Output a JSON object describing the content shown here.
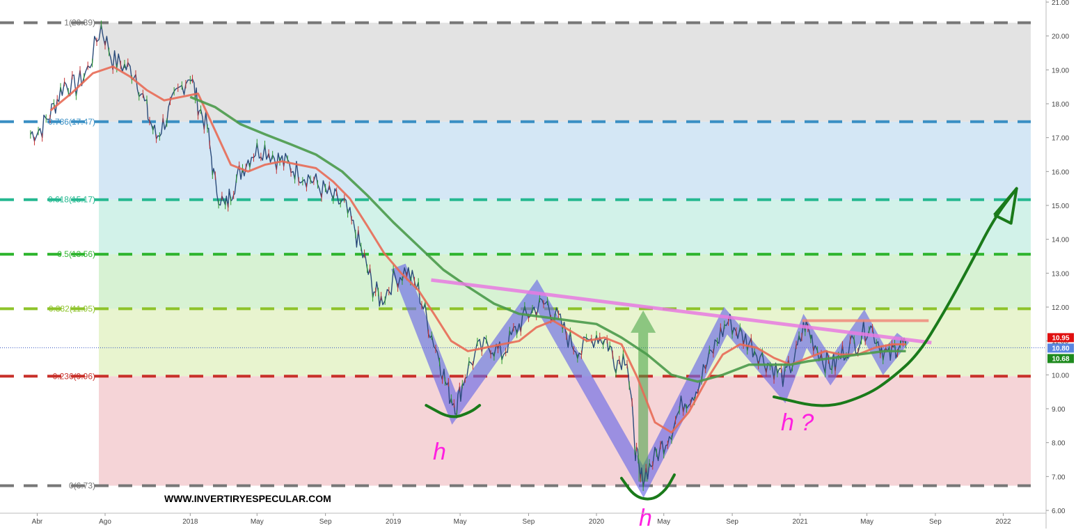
{
  "chart_data": {
    "type": "line",
    "title": "",
    "xlabel": "",
    "ylabel": "",
    "ylim": [
      6.0,
      21.0
    ],
    "grid": false,
    "y_ticks": [
      "6.00",
      "7.00",
      "8.00",
      "9.00",
      "10.00",
      "11.00",
      "12.00",
      "13.00",
      "14.00",
      "15.00",
      "16.00",
      "17.00",
      "18.00",
      "19.00",
      "20.00",
      "21.00"
    ],
    "x_ticks": [
      {
        "label": "Abr",
        "date": "2017-04-01"
      },
      {
        "label": "Ago",
        "date": "2017-08-01"
      },
      {
        "label": "2018",
        "date": "2018-01-01"
      },
      {
        "label": "May",
        "date": "2018-05-01"
      },
      {
        "label": "Sep",
        "date": "2018-09-01"
      },
      {
        "label": "2019",
        "date": "2019-01-01"
      },
      {
        "label": "May",
        "date": "2019-05-01"
      },
      {
        "label": "Sep",
        "date": "2019-09-01"
      },
      {
        "label": "2020",
        "date": "2020-01-01"
      },
      {
        "label": "May",
        "date": "2020-05-01"
      },
      {
        "label": "Sep",
        "date": "2020-09-01"
      },
      {
        "label": "2021",
        "date": "2021-01-01"
      },
      {
        "label": "May",
        "date": "2021-05-01"
      },
      {
        "label": "Sep",
        "date": "2021-09-01"
      },
      {
        "label": "2022",
        "date": "2022-01-01"
      }
    ],
    "fib_levels": [
      {
        "label": "1(20.39)",
        "value": 20.39,
        "color": "#777777"
      },
      {
        "label": "0.786(17.47)",
        "value": 17.47,
        "color": "#3a8fc4"
      },
      {
        "label": "0.618(15.17)",
        "value": 15.17,
        "color": "#25b890"
      },
      {
        "label": "0.5(13.56)",
        "value": 13.56,
        "color": "#2fb52f"
      },
      {
        "label": "0.382(11.95)",
        "value": 11.95,
        "color": "#8ec32a"
      },
      {
        "label": "0.236(9.96)",
        "value": 9.96,
        "color": "#c8302a"
      },
      {
        "label": "0(6.73)",
        "value": 6.73,
        "color": "#777777"
      }
    ],
    "zones": [
      {
        "from": 17.47,
        "to": 20.39,
        "color": "#e3e3e3"
      },
      {
        "from": 15.17,
        "to": 17.47,
        "color": "#d4e7f5"
      },
      {
        "from": 13.56,
        "to": 15.17,
        "color": "#d2f2e9"
      },
      {
        "from": 11.95,
        "to": 13.56,
        "color": "#d7f2d3"
      },
      {
        "from": 9.96,
        "to": 11.95,
        "color": "#e8f4cf"
      },
      {
        "from": 6.73,
        "to": 9.96,
        "color": "#f5d4d7"
      }
    ],
    "price_badges": [
      {
        "value": 10.95,
        "label": "10.95",
        "color": "#e01010"
      },
      {
        "value": 10.8,
        "label": "10.80",
        "color": "#5a86e0"
      },
      {
        "value": 10.68,
        "label": "10.68",
        "color": "#1e8a1e"
      }
    ],
    "current_price": 10.8,
    "series": [
      {
        "role": "price",
        "color": "#2a4a7a",
        "points": [
          [
            "2017-03-20",
            17.1
          ],
          [
            "2017-04-10",
            17.3
          ],
          [
            "2017-05-01",
            17.9
          ],
          [
            "2017-05-20",
            18.6
          ],
          [
            "2017-06-10",
            18.5
          ],
          [
            "2017-07-01",
            19.0
          ],
          [
            "2017-07-25",
            20.3
          ],
          [
            "2017-08-15",
            19.3
          ],
          [
            "2017-09-05",
            19.1
          ],
          [
            "2017-09-25",
            18.9
          ],
          [
            "2017-10-15",
            17.8
          ],
          [
            "2017-11-01",
            17.0
          ],
          [
            "2017-11-20",
            17.6
          ],
          [
            "2017-12-10",
            18.3
          ],
          [
            "2018-01-01",
            18.9
          ],
          [
            "2018-01-15",
            18.0
          ],
          [
            "2018-02-01",
            17.3
          ],
          [
            "2018-02-15",
            15.6
          ],
          [
            "2018-03-05",
            14.9
          ],
          [
            "2018-03-20",
            15.6
          ],
          [
            "2018-04-05",
            16.1
          ],
          [
            "2018-04-25",
            16.6
          ],
          [
            "2018-05-15",
            16.7
          ],
          [
            "2018-06-05",
            16.4
          ],
          [
            "2018-06-25",
            16.2
          ],
          [
            "2018-07-15",
            16.0
          ],
          [
            "2018-08-05",
            15.8
          ],
          [
            "2018-08-25",
            15.5
          ],
          [
            "2018-09-15",
            15.2
          ],
          [
            "2018-10-05",
            15.0
          ],
          [
            "2018-10-25",
            14.2
          ],
          [
            "2018-11-10",
            13.4
          ],
          [
            "2018-11-25",
            12.6
          ],
          [
            "2018-12-10",
            12.2
          ],
          [
            "2019-01-01",
            12.8
          ],
          [
            "2019-01-25",
            13.1
          ],
          [
            "2019-02-15",
            12.5
          ],
          [
            "2019-03-05",
            11.5
          ],
          [
            "2019-03-25",
            10.5
          ],
          [
            "2019-04-10",
            9.5
          ],
          [
            "2019-04-25",
            9.1
          ],
          [
            "2019-05-10",
            10.0
          ],
          [
            "2019-06-01",
            10.7
          ],
          [
            "2019-06-25",
            10.9
          ],
          [
            "2019-07-15",
            10.6
          ],
          [
            "2019-08-05",
            11.2
          ],
          [
            "2019-08-25",
            11.7
          ],
          [
            "2019-09-15",
            12.0
          ],
          [
            "2019-10-05",
            12.1
          ],
          [
            "2019-10-25",
            11.6
          ],
          [
            "2019-11-15",
            11.0
          ],
          [
            "2019-12-05",
            10.7
          ],
          [
            "2020-01-01",
            11.2
          ],
          [
            "2020-01-20",
            11.0
          ],
          [
            "2020-02-05",
            10.4
          ],
          [
            "2020-02-25",
            10.6
          ],
          [
            "2020-03-10",
            8.0
          ],
          [
            "2020-03-20",
            6.9
          ],
          [
            "2020-04-05",
            7.3
          ],
          [
            "2020-04-25",
            7.8
          ],
          [
            "2020-05-15",
            8.4
          ],
          [
            "2020-06-05",
            9.2
          ],
          [
            "2020-06-25",
            9.5
          ],
          [
            "2020-07-15",
            10.2
          ],
          [
            "2020-08-05",
            11.0
          ],
          [
            "2020-08-25",
            11.6
          ],
          [
            "2020-09-15",
            11.2
          ],
          [
            "2020-10-05",
            10.9
          ],
          [
            "2020-10-25",
            10.5
          ],
          [
            "2020-11-15",
            10.2
          ],
          [
            "2020-12-05",
            9.9
          ],
          [
            "2020-12-25",
            10.6
          ],
          [
            "2021-01-10",
            11.5
          ],
          [
            "2021-01-25",
            11.0
          ],
          [
            "2021-02-15",
            10.4
          ],
          [
            "2021-03-05",
            10.3
          ],
          [
            "2021-03-25",
            10.8
          ],
          [
            "2021-04-15",
            11.0
          ],
          [
            "2021-05-05",
            11.5
          ],
          [
            "2021-05-25",
            10.9
          ],
          [
            "2021-06-10",
            10.5
          ],
          [
            "2021-06-25",
            10.9
          ],
          [
            "2021-07-10",
            10.9
          ]
        ]
      },
      {
        "role": "moving-average-short",
        "color": "#e86a55",
        "points": [
          [
            "2017-04-25",
            17.8
          ],
          [
            "2017-06-01",
            18.3
          ],
          [
            "2017-07-10",
            18.9
          ],
          [
            "2017-08-15",
            19.1
          ],
          [
            "2017-09-15",
            18.8
          ],
          [
            "2017-10-15",
            18.4
          ],
          [
            "2017-11-15",
            18.1
          ],
          [
            "2017-12-15",
            18.2
          ],
          [
            "2018-01-15",
            18.3
          ],
          [
            "2018-02-15",
            17.2
          ],
          [
            "2018-03-15",
            16.2
          ],
          [
            "2018-04-15",
            16.0
          ],
          [
            "2018-05-15",
            16.2
          ],
          [
            "2018-06-15",
            16.3
          ],
          [
            "2018-07-15",
            16.2
          ],
          [
            "2018-08-15",
            16.1
          ],
          [
            "2018-09-15",
            15.7
          ],
          [
            "2018-10-15",
            15.2
          ],
          [
            "2018-11-15",
            14.4
          ],
          [
            "2018-12-15",
            13.6
          ],
          [
            "2019-01-15",
            13.0
          ],
          [
            "2019-02-15",
            12.5
          ],
          [
            "2019-03-15",
            11.8
          ],
          [
            "2019-04-15",
            11.0
          ],
          [
            "2019-05-15",
            10.7
          ],
          [
            "2019-06-15",
            10.8
          ],
          [
            "2019-07-15",
            10.9
          ],
          [
            "2019-08-15",
            11.0
          ],
          [
            "2019-09-15",
            11.4
          ],
          [
            "2019-10-15",
            11.6
          ],
          [
            "2019-11-15",
            11.3
          ],
          [
            "2019-12-15",
            11.0
          ],
          [
            "2020-01-15",
            11.1
          ],
          [
            "2020-02-15",
            10.9
          ],
          [
            "2020-03-15",
            9.9
          ],
          [
            "2020-04-15",
            8.6
          ],
          [
            "2020-05-15",
            8.3
          ],
          [
            "2020-06-15",
            8.9
          ],
          [
            "2020-07-15",
            9.8
          ],
          [
            "2020-08-15",
            10.6
          ],
          [
            "2020-09-15",
            10.9
          ],
          [
            "2020-10-15",
            10.8
          ],
          [
            "2020-11-15",
            10.5
          ],
          [
            "2020-12-15",
            10.3
          ],
          [
            "2021-01-15",
            10.5
          ],
          [
            "2021-02-15",
            10.7
          ],
          [
            "2021-03-15",
            10.6
          ],
          [
            "2021-04-15",
            10.6
          ],
          [
            "2021-05-15",
            10.8
          ],
          [
            "2021-06-15",
            10.9
          ],
          [
            "2021-07-10",
            10.9
          ]
        ]
      },
      {
        "role": "moving-average-long",
        "color": "#4a9a4a",
        "points": [
          [
            "2018-01-01",
            18.2
          ],
          [
            "2018-02-15",
            17.9
          ],
          [
            "2018-04-01",
            17.4
          ],
          [
            "2018-05-15",
            17.1
          ],
          [
            "2018-07-01",
            16.8
          ],
          [
            "2018-08-15",
            16.5
          ],
          [
            "2018-10-01",
            16.0
          ],
          [
            "2018-11-15",
            15.3
          ],
          [
            "2019-01-01",
            14.5
          ],
          [
            "2019-02-15",
            13.8
          ],
          [
            "2019-04-01",
            13.1
          ],
          [
            "2019-05-15",
            12.6
          ],
          [
            "2019-07-01",
            12.1
          ],
          [
            "2019-08-15",
            11.8
          ],
          [
            "2019-10-01",
            11.7
          ],
          [
            "2019-11-15",
            11.6
          ],
          [
            "2020-01-01",
            11.5
          ],
          [
            "2020-02-15",
            11.1
          ],
          [
            "2020-04-01",
            10.6
          ],
          [
            "2020-05-15",
            10.0
          ],
          [
            "2020-07-01",
            9.8
          ],
          [
            "2020-08-15",
            10.0
          ],
          [
            "2020-10-01",
            10.3
          ],
          [
            "2020-11-15",
            10.3
          ],
          [
            "2020-12-15",
            10.3
          ],
          [
            "2021-01-15",
            10.4
          ],
          [
            "2021-03-01",
            10.5
          ],
          [
            "2021-04-15",
            10.6
          ],
          [
            "2021-06-01",
            10.7
          ],
          [
            "2021-07-10",
            10.7
          ]
        ]
      }
    ],
    "annotations": {
      "zigzag": [
        [
          "2019-01-10",
          13.2
        ],
        [
          "2019-04-20",
          9.0
        ],
        [
          "2019-09-15",
          12.4
        ],
        [
          "2020-03-25",
          6.85
        ],
        [
          "2020-08-20",
          11.6
        ],
        [
          "2020-12-01",
          9.6
        ],
        [
          "2021-01-10",
          11.3
        ],
        [
          "2021-02-25",
          10.1
        ],
        [
          "2021-04-25",
          11.5
        ],
        [
          "2021-06-01",
          10.4
        ],
        [
          "2021-07-05",
          11.1
        ]
      ],
      "neckline": [
        [
          "2019-03-10",
          12.8
        ],
        [
          "2021-08-25",
          10.95
        ]
      ],
      "resistance": [
        [
          "2021-01-05",
          11.6
        ],
        [
          "2021-08-20",
          11.6
        ]
      ],
      "arrow_up": {
        "date": "2020-03-25",
        "from": 6.85,
        "to": 11.9
      },
      "projection_arc": [
        [
          "2020-11-15",
          9.35
        ],
        [
          "2021-02-15",
          9.0
        ],
        [
          "2021-05-01",
          9.4
        ],
        [
          "2021-06-15",
          9.9
        ],
        [
          "2021-08-01",
          10.6
        ],
        [
          "2021-09-15",
          11.8
        ],
        [
          "2021-11-01",
          13.2
        ],
        [
          "2021-12-15",
          14.6
        ],
        [
          "2022-01-25",
          15.5
        ]
      ],
      "arc_left": [
        [
          "2019-03-01",
          9.1
        ],
        [
          "2019-04-15",
          8.7
        ],
        [
          "2019-05-20",
          8.9
        ],
        [
          "2019-06-05",
          9.1
        ]
      ],
      "arc_middle": [
        [
          "2020-02-15",
          6.95
        ],
        [
          "2020-03-10",
          6.4
        ],
        [
          "2020-04-10",
          6.3
        ],
        [
          "2020-05-05",
          6.6
        ],
        [
          "2020-05-20",
          7.05
        ]
      ],
      "label_left": "h",
      "label_mid": "h",
      "label_right": "h ?"
    },
    "watermark": "WWW.INVERTIRYESPECULAR.COM"
  }
}
